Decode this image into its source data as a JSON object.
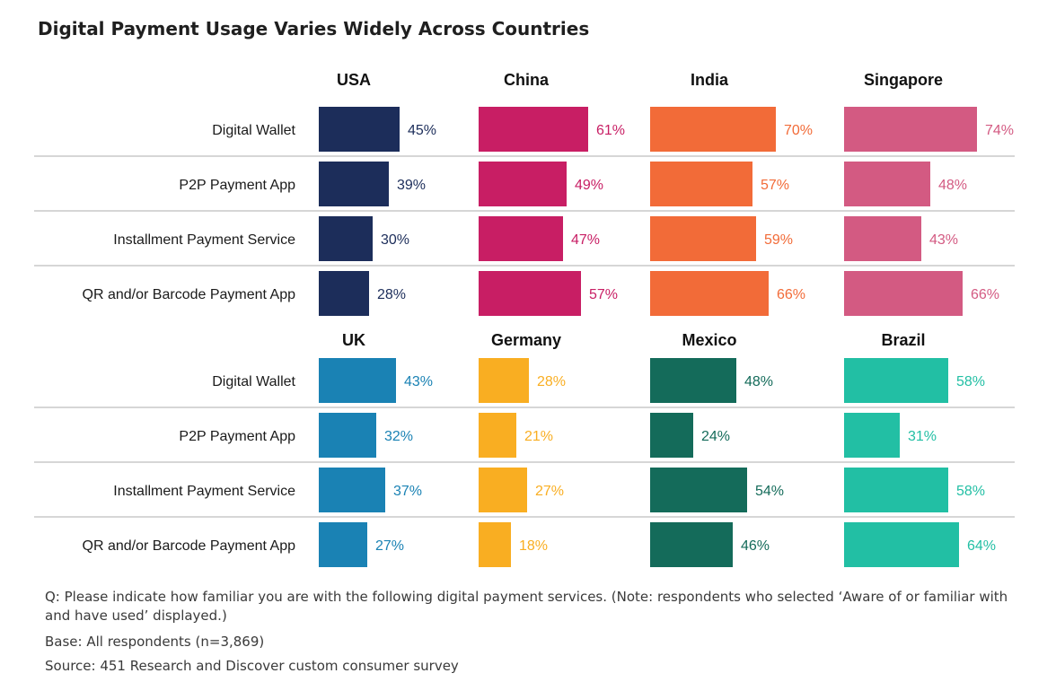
{
  "title": "Digital Payment Usage Varies Widely Across Countries",
  "footnotes": {
    "question": "Q: Please indicate how familiar you are with the following digital payment services. (Note: respondents who selected ‘Aware of or familiar with and have used’ displayed.)",
    "base": "Base: All respondents (n=3,869)",
    "source": "Source: 451 Research and Discover custom consumer survey"
  },
  "chart_data": {
    "type": "bar",
    "orientation": "horizontal",
    "layout": "small-multiples",
    "categories": [
      "Digital Wallet",
      "P2P Payment App",
      "Installment Payment Service",
      "QR and/or Barcode Payment App"
    ],
    "unit": "%",
    "panels": [
      {
        "name": "USA",
        "color": "#1c2d5a",
        "values": [
          45,
          39,
          30,
          28
        ]
      },
      {
        "name": "China",
        "color": "#c81e64",
        "values": [
          61,
          49,
          47,
          57
        ]
      },
      {
        "name": "India",
        "color": "#f26b38",
        "values": [
          70,
          57,
          59,
          66
        ]
      },
      {
        "name": "Singapore",
        "color": "#d35a82",
        "values": [
          74,
          48,
          43,
          66
        ]
      },
      {
        "name": "UK",
        "color": "#1a82b4",
        "values": [
          43,
          32,
          37,
          27
        ]
      },
      {
        "name": "Germany",
        "color": "#f9ae22",
        "values": [
          28,
          21,
          27,
          18
        ]
      },
      {
        "name": "Mexico",
        "color": "#146b5a",
        "values": [
          48,
          24,
          54,
          46
        ]
      },
      {
        "name": "Brazil",
        "color": "#22bfa4",
        "values": [
          58,
          31,
          58,
          64
        ]
      }
    ]
  }
}
